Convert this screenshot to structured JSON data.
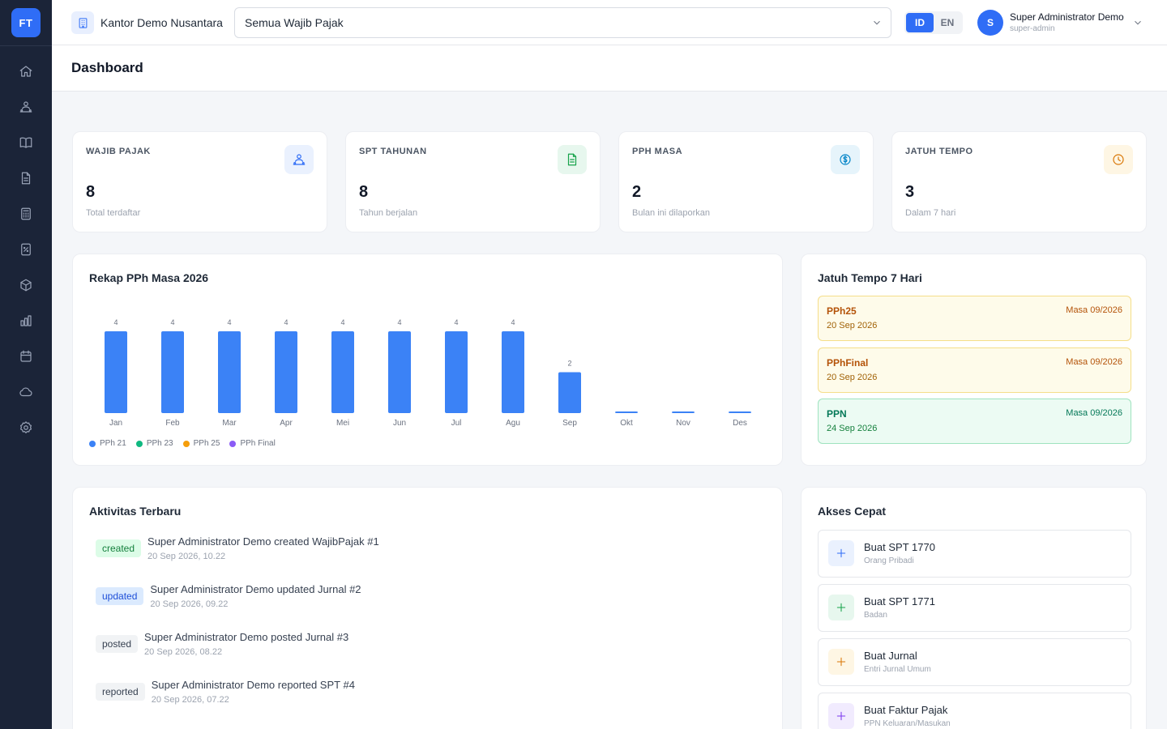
{
  "app": {
    "logo_text": "FT"
  },
  "colors": {
    "accent": "#2f6df6",
    "sidebar": "#1b2438"
  },
  "sidebar": {
    "items": [
      {
        "icon": "home-icon"
      },
      {
        "icon": "users-icon"
      },
      {
        "icon": "book-icon"
      },
      {
        "icon": "document-icon"
      },
      {
        "icon": "calculator-icon"
      },
      {
        "icon": "receipt-icon"
      },
      {
        "icon": "box-icon"
      },
      {
        "icon": "bar-chart-icon"
      },
      {
        "icon": "calendar-icon"
      },
      {
        "icon": "cloud-icon"
      },
      {
        "icon": "gear-icon"
      }
    ]
  },
  "topbar": {
    "office_name": "Kantor Demo Nusantara",
    "taxpayer_select": "Semua Wajib Pajak",
    "lang": {
      "id": "ID",
      "en": "EN",
      "active": "ID"
    },
    "user": {
      "initial": "S",
      "name": "Super Administrator Demo",
      "role": "super-admin"
    }
  },
  "page": {
    "title": "Dashboard"
  },
  "stats": [
    {
      "label": "WAJIB PAJAK",
      "value": "8",
      "sub": "Total terdaftar",
      "icon": "users-icon",
      "color": "#2f6df6",
      "bg": "#eaf1fe"
    },
    {
      "label": "SPT TAHUNAN",
      "value": "8",
      "sub": "Tahun berjalan",
      "icon": "document-icon",
      "color": "#16a34a",
      "bg": "#e7f7ee"
    },
    {
      "label": "PPH MASA",
      "value": "2",
      "sub": "Bulan ini dilaporkan",
      "icon": "dollar-icon",
      "color": "#0284c7",
      "bg": "#e6f4fb"
    },
    {
      "label": "JATUH TEMPO",
      "value": "3",
      "sub": "Dalam 7 hari",
      "icon": "clock-icon",
      "color": "#d97706",
      "bg": "#fef6e4"
    }
  ],
  "chart_panel": {
    "title": "Rekap PPh Masa 2026"
  },
  "chart_data": {
    "type": "bar",
    "categories": [
      "Jan",
      "Feb",
      "Mar",
      "Apr",
      "Mei",
      "Jun",
      "Jul",
      "Agu",
      "Sep",
      "Okt",
      "Nov",
      "Des"
    ],
    "values": [
      4,
      4,
      4,
      4,
      4,
      4,
      4,
      4,
      2,
      0,
      0,
      0
    ],
    "data_labels": [
      "4",
      "4",
      "4",
      "4",
      "4",
      "4",
      "4",
      "4",
      "2",
      "",
      "",
      ""
    ],
    "ylim": [
      0,
      4
    ],
    "bar_color": "#3b82f6",
    "legend": [
      {
        "name": "PPh 21",
        "color": "#3b82f6"
      },
      {
        "name": "PPh 23",
        "color": "#10b981"
      },
      {
        "name": "PPh 25",
        "color": "#f59e0b"
      },
      {
        "name": "PPh Final",
        "color": "#8b5cf6"
      }
    ],
    "legend_position": "bottom-left",
    "grid": false
  },
  "due_panel": {
    "title": "Jatuh Tempo 7 Hari",
    "items": [
      {
        "type": "PPh25",
        "period": "Masa 09/2026",
        "date": "20 Sep 2026",
        "tone": "amber"
      },
      {
        "type": "PPhFinal",
        "period": "Masa 09/2026",
        "date": "20 Sep 2026",
        "tone": "amber"
      },
      {
        "type": "PPN",
        "period": "Masa 09/2026",
        "date": "24 Sep 2026",
        "tone": "green"
      }
    ]
  },
  "activity": {
    "title": "Aktivitas Terbaru",
    "items": [
      {
        "badge": "created",
        "tone": "green",
        "text": "Super Administrator Demo created WajibPajak #1",
        "time": "20 Sep 2026, 10.22"
      },
      {
        "badge": "updated",
        "tone": "blue",
        "text": "Super Administrator Demo updated Jurnal #2",
        "time": "20 Sep 2026, 09.22"
      },
      {
        "badge": "posted",
        "tone": "gray",
        "text": "Super Administrator Demo posted Jurnal #3",
        "time": "20 Sep 2026, 08.22"
      },
      {
        "badge": "reported",
        "tone": "gray",
        "text": "Super Administrator Demo reported SPT #4",
        "time": "20 Sep 2026, 07.22"
      }
    ]
  },
  "quick": {
    "title": "Akses Cepat",
    "items": [
      {
        "title": "Buat SPT 1770",
        "sub": "Orang Pribadi",
        "color": "#2f6df6",
        "bg": "#eaf1fe"
      },
      {
        "title": "Buat SPT 1771",
        "sub": "Badan",
        "color": "#16a34a",
        "bg": "#e7f7ee"
      },
      {
        "title": "Buat Jurnal",
        "sub": "Entri Jurnal Umum",
        "color": "#d97706",
        "bg": "#fef6e4"
      },
      {
        "title": "Buat Faktur Pajak",
        "sub": "PPN Keluaran/Masukan",
        "color": "#7c3aed",
        "bg": "#f1ebfe"
      }
    ]
  }
}
